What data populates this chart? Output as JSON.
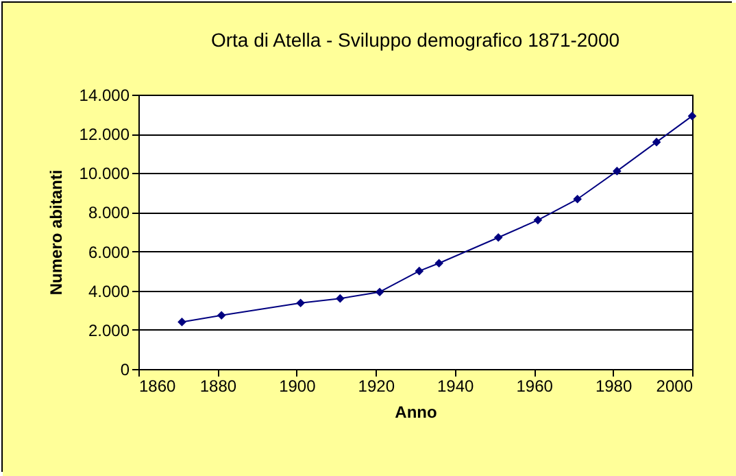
{
  "chart_data": {
    "type": "line",
    "title": "Orta di Atella - Sviluppo demografico 1871-2000",
    "xlabel": "Anno",
    "ylabel": "Numero abitanti",
    "x": [
      1871,
      1881,
      1901,
      1911,
      1921,
      1931,
      1936,
      1951,
      1961,
      1971,
      1981,
      1991,
      2000
    ],
    "series": [
      {
        "color": "#000080",
        "values": [
          2400,
          2740,
          3370,
          3600,
          3930,
          5000,
          5400,
          6710,
          7600,
          8670,
          10100,
          11580,
          12910
        ]
      }
    ],
    "xlim": [
      1860,
      2000
    ],
    "xticks": [
      1860,
      1880,
      1900,
      1920,
      1940,
      1960,
      1980,
      2000
    ],
    "ylim": [
      0,
      14000
    ],
    "yticks": [
      {
        "value": 0,
        "label": "0"
      },
      {
        "value": 2000,
        "label": "2.000"
      },
      {
        "value": 4000,
        "label": "4.000"
      },
      {
        "value": 6000,
        "label": "6.000"
      },
      {
        "value": 8000,
        "label": "8.000"
      },
      {
        "value": 10000,
        "label": "10.000"
      },
      {
        "value": 12000,
        "label": "12.000"
      },
      {
        "value": 14000,
        "label": "14.000"
      }
    ],
    "grid": "y",
    "marker": "diamond",
    "line_style": "solid"
  }
}
